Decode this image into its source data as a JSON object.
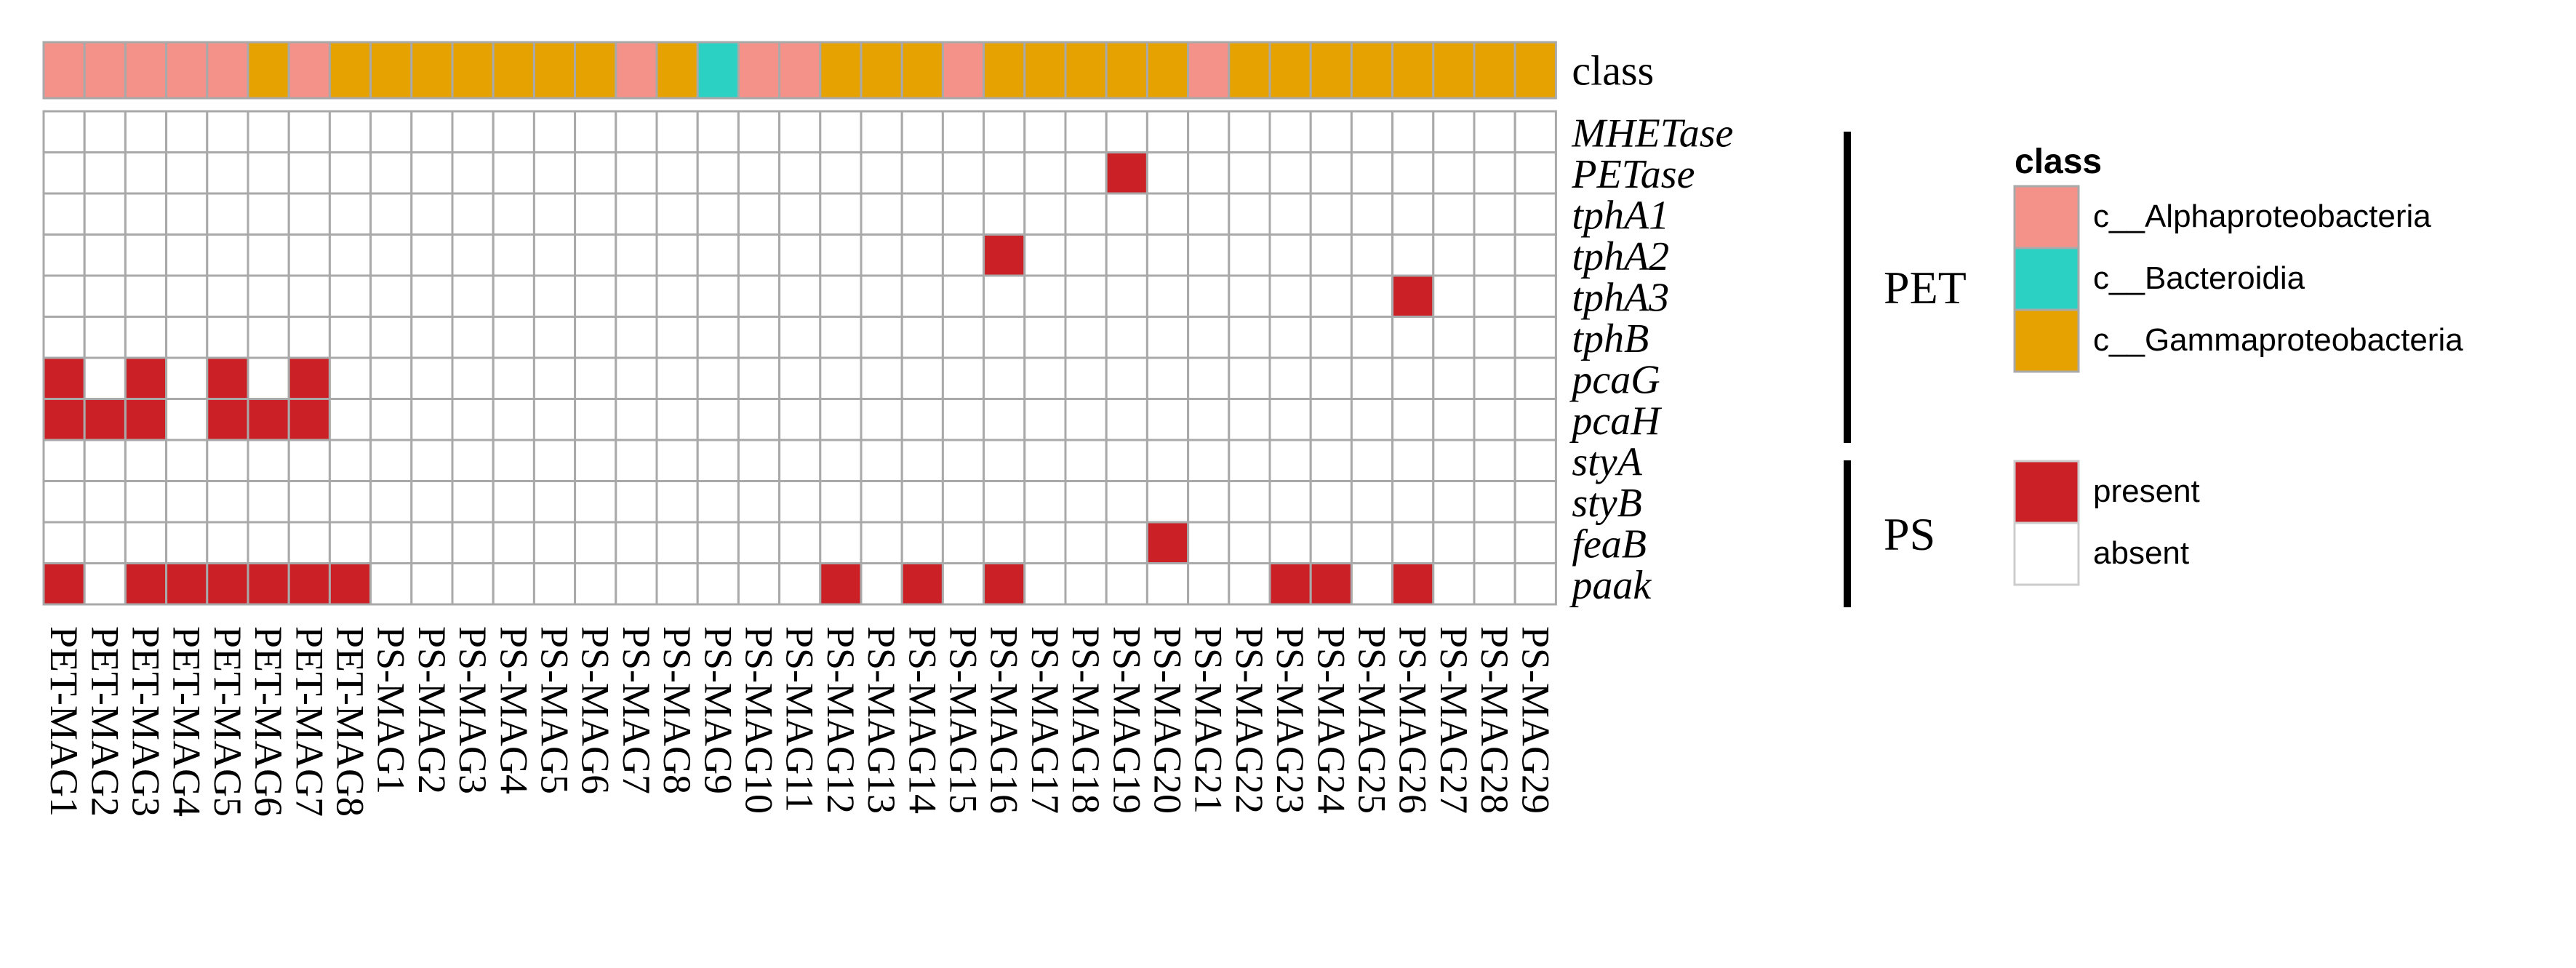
{
  "chart_data": {
    "type": "heatmap",
    "columns": [
      "PET-MAG1",
      "PET-MAG2",
      "PET-MAG3",
      "PET-MAG4",
      "PET-MAG5",
      "PET-MAG6",
      "PET-MAG7",
      "PET-MAG8",
      "PS-MAG1",
      "PS-MAG2",
      "PS-MAG3",
      "PS-MAG4",
      "PS-MAG5",
      "PS-MAG6",
      "PS-MAG7",
      "PS-MAG8",
      "PS-MAG9",
      "PS-MAG10",
      "PS-MAG11",
      "PS-MAG12",
      "PS-MAG13",
      "PS-MAG14",
      "PS-MAG15",
      "PS-MAG16",
      "PS-MAG17",
      "PS-MAG18",
      "PS-MAG19",
      "PS-MAG20",
      "PS-MAG21",
      "PS-MAG22",
      "PS-MAG23",
      "PS-MAG24",
      "PS-MAG25",
      "PS-MAG26",
      "PS-MAG27",
      "PS-MAG28",
      "PS-MAG29"
    ],
    "rows": [
      "MHETase",
      "PETase",
      "tphA1",
      "tphA2",
      "tphA3",
      "tphB",
      "pcaG",
      "pcaH",
      "styA",
      "styB",
      "feaB",
      "paak"
    ],
    "values": [
      [
        0,
        0,
        0,
        0,
        0,
        0,
        0,
        0,
        0,
        0,
        0,
        0,
        0,
        0,
        0,
        0,
        0,
        0,
        0,
        0,
        0,
        0,
        0,
        0,
        0,
        0,
        0,
        0,
        0,
        0,
        0,
        0,
        0,
        0,
        0,
        0,
        0
      ],
      [
        0,
        0,
        0,
        0,
        0,
        0,
        0,
        0,
        0,
        0,
        0,
        0,
        0,
        0,
        0,
        0,
        0,
        0,
        0,
        0,
        0,
        0,
        0,
        0,
        0,
        0,
        1,
        0,
        0,
        0,
        0,
        0,
        0,
        0,
        0,
        0,
        0
      ],
      [
        0,
        0,
        0,
        0,
        0,
        0,
        0,
        0,
        0,
        0,
        0,
        0,
        0,
        0,
        0,
        0,
        0,
        0,
        0,
        0,
        0,
        0,
        0,
        0,
        0,
        0,
        0,
        0,
        0,
        0,
        0,
        0,
        0,
        0,
        0,
        0,
        0
      ],
      [
        0,
        0,
        0,
        0,
        0,
        0,
        0,
        0,
        0,
        0,
        0,
        0,
        0,
        0,
        0,
        0,
        0,
        0,
        0,
        0,
        0,
        0,
        0,
        1,
        0,
        0,
        0,
        0,
        0,
        0,
        0,
        0,
        0,
        0,
        0,
        0,
        0
      ],
      [
        0,
        0,
        0,
        0,
        0,
        0,
        0,
        0,
        0,
        0,
        0,
        0,
        0,
        0,
        0,
        0,
        0,
        0,
        0,
        0,
        0,
        0,
        0,
        0,
        0,
        0,
        0,
        0,
        0,
        0,
        0,
        0,
        0,
        1,
        0,
        0,
        0
      ],
      [
        0,
        0,
        0,
        0,
        0,
        0,
        0,
        0,
        0,
        0,
        0,
        0,
        0,
        0,
        0,
        0,
        0,
        0,
        0,
        0,
        0,
        0,
        0,
        0,
        0,
        0,
        0,
        0,
        0,
        0,
        0,
        0,
        0,
        0,
        0,
        0,
        0
      ],
      [
        1,
        0,
        1,
        0,
        1,
        0,
        1,
        0,
        0,
        0,
        0,
        0,
        0,
        0,
        0,
        0,
        0,
        0,
        0,
        0,
        0,
        0,
        0,
        0,
        0,
        0,
        0,
        0,
        0,
        0,
        0,
        0,
        0,
        0,
        0,
        0,
        0
      ],
      [
        1,
        1,
        1,
        0,
        1,
        1,
        1,
        0,
        0,
        0,
        0,
        0,
        0,
        0,
        0,
        0,
        0,
        0,
        0,
        0,
        0,
        0,
        0,
        0,
        0,
        0,
        0,
        0,
        0,
        0,
        0,
        0,
        0,
        0,
        0,
        0,
        0
      ],
      [
        0,
        0,
        0,
        0,
        0,
        0,
        0,
        0,
        0,
        0,
        0,
        0,
        0,
        0,
        0,
        0,
        0,
        0,
        0,
        0,
        0,
        0,
        0,
        0,
        0,
        0,
        0,
        0,
        0,
        0,
        0,
        0,
        0,
        0,
        0,
        0,
        0
      ],
      [
        0,
        0,
        0,
        0,
        0,
        0,
        0,
        0,
        0,
        0,
        0,
        0,
        0,
        0,
        0,
        0,
        0,
        0,
        0,
        0,
        0,
        0,
        0,
        0,
        0,
        0,
        0,
        0,
        0,
        0,
        0,
        0,
        0,
        0,
        0,
        0,
        0
      ],
      [
        0,
        0,
        0,
        0,
        0,
        0,
        0,
        0,
        0,
        0,
        0,
        0,
        0,
        0,
        0,
        0,
        0,
        0,
        0,
        0,
        0,
        0,
        0,
        0,
        0,
        0,
        0,
        1,
        0,
        0,
        0,
        0,
        0,
        0,
        0,
        0,
        0
      ],
      [
        1,
        0,
        1,
        1,
        1,
        1,
        1,
        1,
        0,
        0,
        0,
        0,
        0,
        0,
        0,
        0,
        0,
        0,
        0,
        1,
        0,
        1,
        0,
        1,
        0,
        0,
        0,
        0,
        0,
        0,
        1,
        1,
        0,
        1,
        0,
        0,
        0
      ]
    ],
    "column_class": [
      0,
      0,
      0,
      0,
      0,
      2,
      0,
      2,
      2,
      2,
      2,
      2,
      2,
      2,
      0,
      2,
      1,
      0,
      0,
      2,
      2,
      2,
      0,
      2,
      2,
      2,
      2,
      2,
      0,
      2,
      2,
      2,
      2,
      2,
      2,
      2,
      2
    ],
    "class_row_label": "class",
    "row_groups": [
      {
        "label": "PET",
        "from": "MHETase",
        "to": "pcaH"
      },
      {
        "label": "PS",
        "from": "styA",
        "to": "paak"
      }
    ],
    "legend_class": {
      "title": "class",
      "items": [
        {
          "label": "c__Alphaproteobacteria",
          "color": "#f4928a"
        },
        {
          "label": "c__Bacteroidia",
          "color": "#2bd2c4"
        },
        {
          "label": "c__Gammaproteobacteria",
          "color": "#e6a200"
        }
      ]
    },
    "legend_presence": {
      "items": [
        {
          "label": "present",
          "color": "#cc2027"
        },
        {
          "label": "absent",
          "color": "#ffffff"
        }
      ]
    }
  }
}
